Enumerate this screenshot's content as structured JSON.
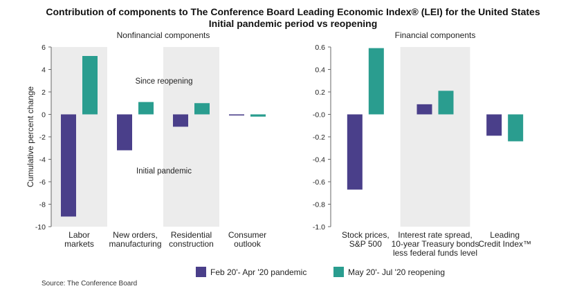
{
  "title": "Contribution of components to The Conference Board Leading Economic Index® (LEI) for the United States",
  "subtitle": "Initial pandemic period vs reopening",
  "colors": {
    "pandemic": "#4a3f8a",
    "reopening": "#2a9d8f",
    "shade": "#ececec",
    "axis": "#666666"
  },
  "legend": {
    "pandemic": "Feb 20'- Apr '20 pandemic",
    "reopening": "May 20'- Jul '20 reopening"
  },
  "source": "Source: The Conference Board",
  "chart_data": [
    {
      "type": "bar",
      "title": "Nonfinancial components",
      "ylabel": "Cumulative percent change",
      "ylim": [
        -10,
        6
      ],
      "yticks": [
        6,
        4,
        2,
        0,
        -2,
        -4,
        -6,
        -8,
        -10
      ],
      "ytick_labels": [
        "6",
        "4",
        "2",
        "0",
        "-2",
        "-4",
        "-6",
        "-8",
        "-10"
      ],
      "categories": [
        [
          "Labor",
          "markets"
        ],
        [
          "New orders,",
          "manufacturing"
        ],
        [
          "Residential",
          "construction"
        ],
        [
          "Consumer",
          "outlook"
        ]
      ],
      "series": [
        {
          "name": "Feb 20'- Apr '20 pandemic",
          "values": [
            -9.1,
            -3.2,
            -1.1,
            -0.1
          ]
        },
        {
          "name": "May 20'- Jul '20 reopening",
          "values": [
            5.2,
            1.1,
            1.0,
            -0.2
          ]
        }
      ],
      "shaded_categories": [
        0,
        2
      ],
      "annotations": [
        "Since reopening",
        "Initial pandemic"
      ]
    },
    {
      "type": "bar",
      "title": "Financial components",
      "ylim": [
        -1.0,
        0.6
      ],
      "yticks": [
        0.6,
        0.4,
        0.2,
        0,
        -0.2,
        -0.4,
        -0.6,
        -0.8,
        -1.0
      ],
      "ytick_labels": [
        "0.6",
        "0.4",
        "0.2",
        "-0.0",
        "-0.2",
        "-0.4",
        "-0.6",
        "-0.8",
        "-1.0"
      ],
      "categories": [
        [
          "Stock prices,",
          "S&P 500"
        ],
        [
          "Interest rate spread,",
          "10-year Treasury bonds",
          "less federal funds level"
        ],
        [
          "Leading",
          "Credit Index™"
        ]
      ],
      "series": [
        {
          "name": "Feb 20'- Apr '20 pandemic",
          "values": [
            -0.67,
            0.09,
            -0.19
          ]
        },
        {
          "name": "May 20'- Jul '20 reopening",
          "values": [
            0.59,
            0.21,
            -0.24
          ]
        }
      ],
      "shaded_categories": [
        1
      ]
    }
  ]
}
